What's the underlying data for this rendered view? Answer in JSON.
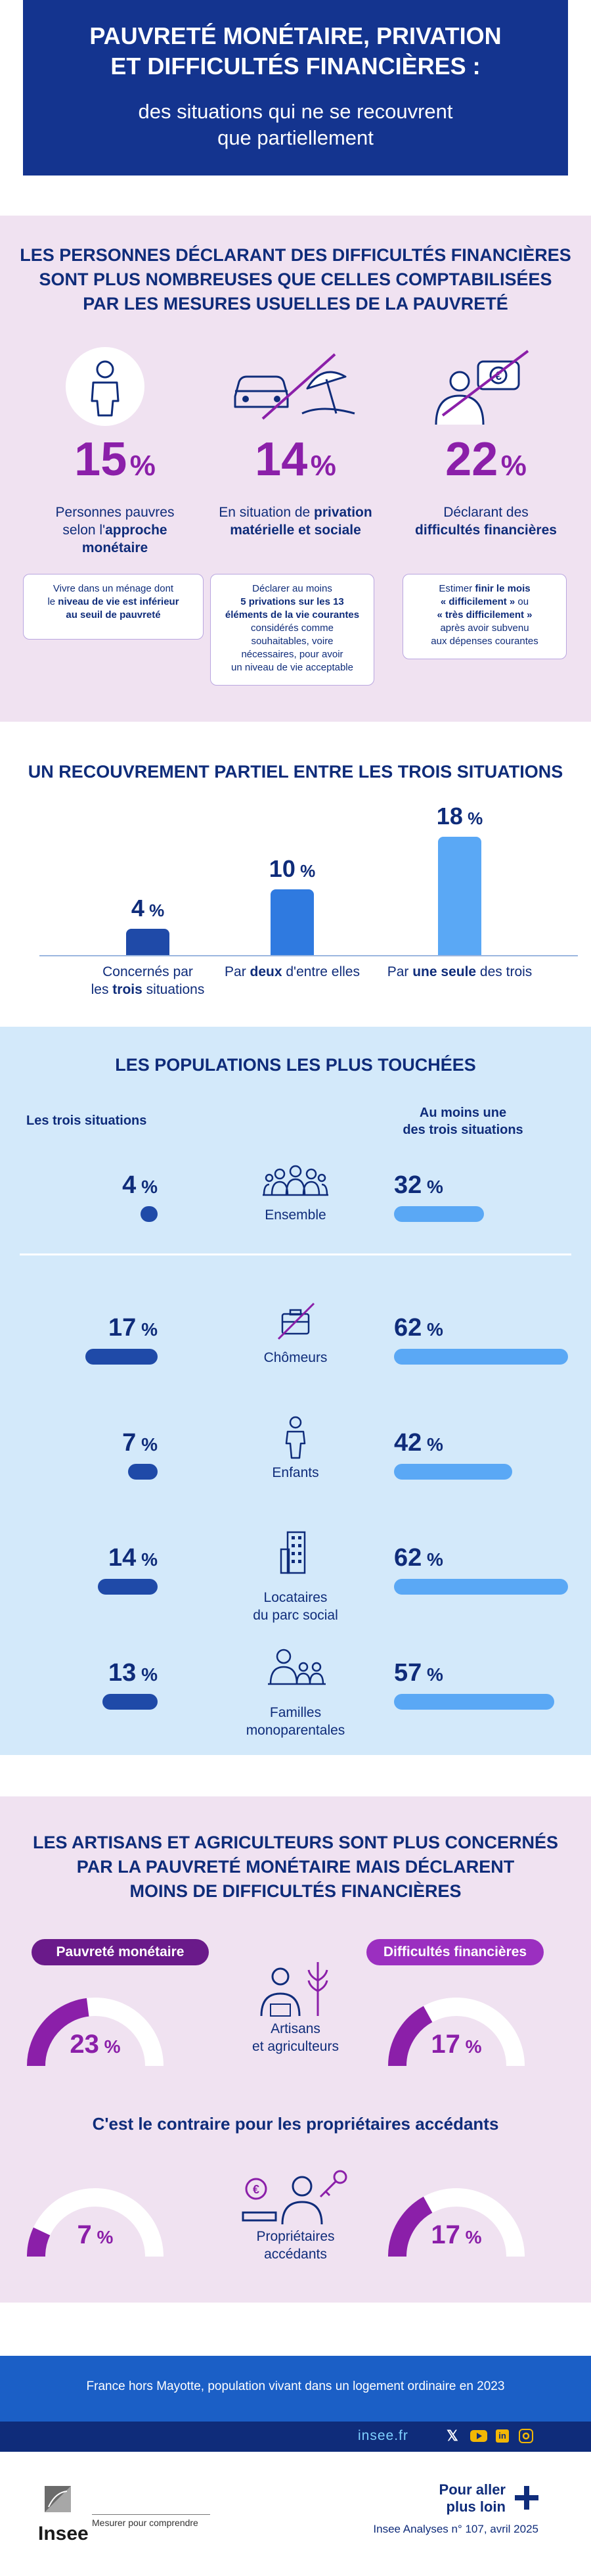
{
  "header": {
    "title_line1": "PAUVRETÉ MONÉTAIRE, PRIVATION",
    "title_line2": "ET DIFFICULTÉS FINANCIÈRES :",
    "subtitle_line1": "des situations qui ne se recouvrent",
    "subtitle_line2": "que partiellement"
  },
  "section1": {
    "title_line1": "LES PERSONNES DÉCLARANT DES DIFFICULTÉS FINANCIÈRES",
    "title_line2": "SONT PLUS NOMBREUSES QUE CELLES COMPTABILISÉES",
    "title_line3": "PAR LES MESURES USUELLES DE LA PAUVRETÉ",
    "items": [
      {
        "value": "15",
        "unit": "%",
        "label_line1": "Personnes pauvres",
        "label_line2a": "selon l'",
        "label_line2b": "approche",
        "label_line3": "monétaire",
        "icon": "person-icon",
        "note": [
          "Vivre dans un ménage dont",
          "le ",
          "niveau de vie est inférieur",
          "au seuil de pauvreté"
        ]
      },
      {
        "value": "14",
        "unit": "%",
        "label_line1a": "En situation de ",
        "label_line1b": "privation",
        "label_line2": "matérielle et sociale",
        "icon": "car-umbrella-crossed-icon",
        "note": [
          "Déclarer au moins",
          "5 privations sur les 13",
          "éléments de la vie courantes",
          "considérés comme",
          "souhaitables, voire",
          "nécessaires, pour avoir",
          "un niveau de vie acceptable"
        ]
      },
      {
        "value": "22",
        "unit": "%",
        "label_line1": "Déclarant des",
        "label_line2": "difficultés financières",
        "icon": "person-euro-crossed-icon",
        "note": [
          "Estimer ",
          "finir le mois",
          "« difficilement »",
          " ou",
          "« très difficilement »",
          "après avoir subvenu",
          "aux dépenses courantes"
        ]
      }
    ]
  },
  "section2": {
    "title": "UN RECOUVREMENT PARTIEL ENTRE LES TROIS SITUATIONS"
  },
  "section3": {
    "title": "LES POPULATIONS LES PLUS TOUCHÉES",
    "col_left": "Les trois situations",
    "col_right_line1": "Au moins une",
    "col_right_line2": "des trois situations"
  },
  "section4": {
    "title_line1": "LES ARTISANS ET AGRICULTEURS SONT PLUS CONCERNÉS",
    "title_line2": "PAR LA PAUVRETÉ MONÉTAIRE MAIS DÉCLARENT",
    "title_line3": "MOINS DE DIFFICULTÉS FINANCIÈRES",
    "pill_left": "Pauvreté monétaire",
    "pill_right": "Difficultés financières",
    "subtitle": "C'est le contraire pour les propriétaires accédants",
    "group1_label_line1": "Artisans",
    "group1_label_line2": "et agriculteurs",
    "group2_label_line1": "Propriétaires",
    "group2_label_line2": "accédants"
  },
  "footer": {
    "scope": "France hors Mayotte, population vivant dans un logement ordinaire en 2023",
    "site": "insee.fr",
    "logo": "Insee",
    "tagline": "Mesurer pour comprendre",
    "more_line1": "Pour aller",
    "more_line2": "plus loin",
    "reference": "Insee Analyses n° 107, avril 2025"
  },
  "colors": {
    "navy": "#0f2c7a",
    "purple": "#8b1fa9",
    "dark_blue_bar": "#1f4aa8",
    "mid_blue_bar": "#2f7ae0",
    "light_blue_bar": "#5aa8f5",
    "pink_bg": "#f0e2f1",
    "light_blue_bg": "#d3e9fa"
  },
  "chart_data": [
    {
      "type": "bar",
      "title": "UN RECOUVREMENT PARTIEL ENTRE LES TROIS SITUATIONS",
      "categories": [
        "Concernés par les trois situations",
        "Par deux d'entre elles",
        "Par une seule des trois"
      ],
      "values": [
        4,
        10,
        18
      ],
      "unit": "%"
    },
    {
      "type": "bar",
      "title": "LES POPULATIONS LES PLUS TOUCHÉES",
      "categories": [
        "Ensemble",
        "Chômeurs",
        "Enfants",
        "Locataires du parc social",
        "Familles monoparentales"
      ],
      "series": [
        {
          "name": "Les trois situations",
          "values": [
            4,
            17,
            7,
            14,
            13
          ]
        },
        {
          "name": "Au moins une des trois situations",
          "values": [
            32,
            62,
            42,
            62,
            57
          ]
        }
      ],
      "unit": "%"
    },
    {
      "type": "pie",
      "title": "LES ARTISANS ET AGRICULTEURS SONT PLUS CONCERNÉS PAR LA PAUVRETÉ MONÉTAIRE MAIS DÉCLARENT MOINS DE DIFFICULTÉS FINANCIÈRES",
      "categories": [
        "Artisans et agriculteurs",
        "Propriétaires accédants"
      ],
      "series": [
        {
          "name": "Pauvreté monétaire",
          "values": [
            23,
            7
          ]
        },
        {
          "name": "Difficultés financières",
          "values": [
            17,
            17
          ]
        }
      ],
      "unit": "%"
    }
  ]
}
